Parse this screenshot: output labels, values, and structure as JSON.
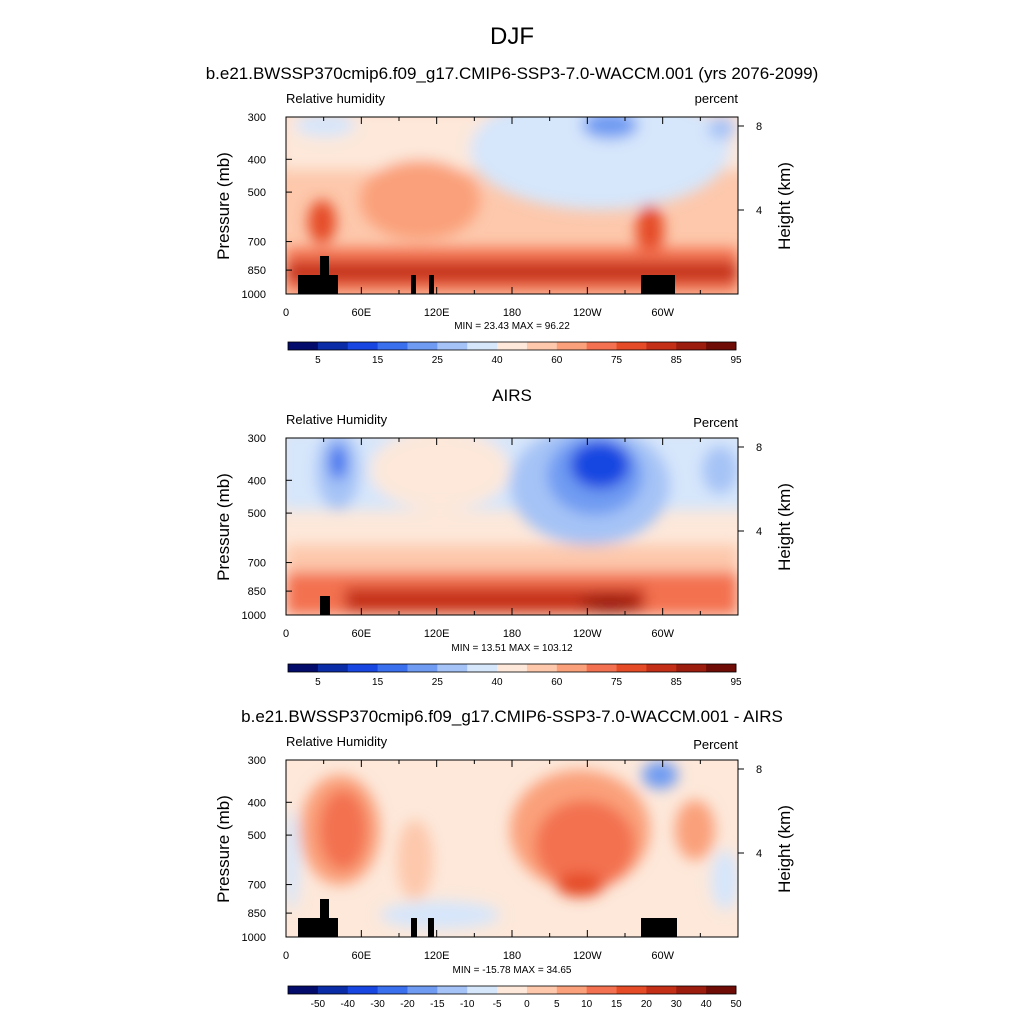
{
  "figure": {
    "title": "DJF"
  },
  "colors": {
    "rh_levels": [
      "#030B6B",
      "#0A2CA6",
      "#1846E1",
      "#3A6FEE",
      "#6F9BF2",
      "#A5C3F6",
      "#D6E6FB",
      "#FDE8DA",
      "#FDC8AC",
      "#FAA07A",
      "#F37150",
      "#E54B26",
      "#C42F17",
      "#9C1C0D",
      "#6E0C05"
    ],
    "diff_levels": [
      "#030B6B",
      "#0A2CA6",
      "#1846E1",
      "#3A6FEE",
      "#6F9BF2",
      "#A5C3F6",
      "#D6E6FB",
      "#FDE8DA",
      "#FDC8AC",
      "#FAA07A",
      "#F37150",
      "#E54B26",
      "#C42F17",
      "#9C1C0D",
      "#6E0C05"
    ],
    "topography": "#000000"
  },
  "chart_data": [
    {
      "type": "heatmap",
      "title": "b.e21.BWSSP370cmip6.f09_g17.CMIP6-SSP3-7.0-WACCM.001 (yrs 2076-2099)",
      "left_label": "Relative humidity",
      "right_label": "percent",
      "ylabel": "Pressure (mb)",
      "ylabel_right": "Height (km)",
      "x_ticks": [
        "0",
        "60E",
        "120E",
        "180",
        "120W",
        "60W"
      ],
      "y_ticks": [
        "300",
        "400",
        "500",
        "700",
        "850",
        "1000"
      ],
      "y_right_ticks": [
        "8",
        "4"
      ],
      "stats": "MIN =  23.43  MAX =  96.22",
      "colorbar_labels": [
        "5",
        "15",
        "25",
        "40",
        "60",
        "75",
        "85",
        "95"
      ],
      "xlim": [
        0,
        360
      ],
      "ylim": [
        1000,
        300
      ]
    },
    {
      "type": "heatmap",
      "title": "AIRS",
      "left_label": "Relative Humidity",
      "right_label": "Percent",
      "ylabel": "Pressure (mb)",
      "ylabel_right": "Height (km)",
      "x_ticks": [
        "0",
        "60E",
        "120E",
        "180",
        "120W",
        "60W"
      ],
      "y_ticks": [
        "300",
        "400",
        "500",
        "700",
        "850",
        "1000"
      ],
      "y_right_ticks": [
        "8",
        "4"
      ],
      "stats": "MIN =  13.51  MAX = 103.12",
      "colorbar_labels": [
        "5",
        "15",
        "25",
        "40",
        "60",
        "75",
        "85",
        "95"
      ],
      "xlim": [
        0,
        360
      ],
      "ylim": [
        1000,
        300
      ]
    },
    {
      "type": "heatmap",
      "title": "b.e21.BWSSP370cmip6.f09_g17.CMIP6-SSP3-7.0-WACCM.001 - AIRS",
      "left_label": "Relative Humidity",
      "right_label": "Percent",
      "ylabel": "Pressure (mb)",
      "ylabel_right": "Height (km)",
      "x_ticks": [
        "0",
        "60E",
        "120E",
        "180",
        "120W",
        "60W"
      ],
      "y_ticks": [
        "300",
        "400",
        "500",
        "700",
        "850",
        "1000"
      ],
      "y_right_ticks": [
        "8",
        "4"
      ],
      "stats": "MIN = -15.78  MAX =  34.65",
      "colorbar_labels": [
        "-50",
        "-40",
        "-30",
        "-20",
        "-15",
        "-10",
        "-5",
        "0",
        "5",
        "10",
        "15",
        "20",
        "30",
        "40",
        "50"
      ],
      "xlim": [
        0,
        360
      ],
      "ylim": [
        1000,
        300
      ]
    }
  ]
}
